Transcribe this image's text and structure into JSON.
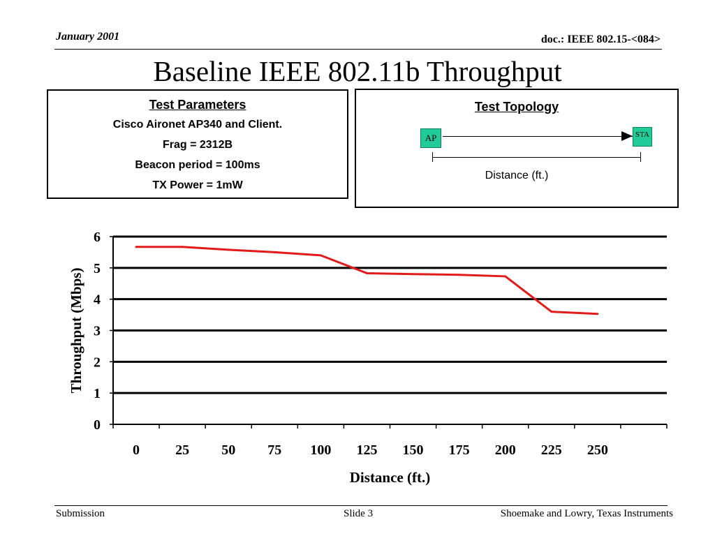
{
  "header": {
    "date": "January 2001",
    "doc": "doc.: IEEE 802.15-<084>"
  },
  "title": "Baseline IEEE 802.11b Throughput",
  "params": {
    "heading": "Test Parameters",
    "lines": [
      "Cisco Aironet AP340 and Client.",
      "Frag = 2312B",
      "Beacon period = 100ms",
      "TX Power = 1mW"
    ]
  },
  "topology": {
    "heading": "Test Topology",
    "ap": "AP",
    "sta": "STA",
    "distance_label": "Distance (ft.)"
  },
  "chart_data": {
    "type": "line",
    "categories": [
      "0",
      "25",
      "50",
      "75",
      "100",
      "125",
      "150",
      "175",
      "200",
      "225",
      "250"
    ],
    "series": [
      {
        "values": [
          5.67,
          5.67,
          5.58,
          5.5,
          5.4,
          4.83,
          4.8,
          4.78,
          4.73,
          3.6,
          3.53
        ],
        "color": "#e31a1a"
      }
    ],
    "xlabel": "Distance (ft.)",
    "ylabel": "Throughput (Mbps)",
    "ylim": [
      0,
      6
    ],
    "yticks": [
      0,
      1,
      2,
      3,
      4,
      5,
      6
    ],
    "grid": true,
    "legend": "none"
  },
  "footer": {
    "left": "Submission",
    "center": "Slide 3",
    "right": "Shoemake and Lowry, Texas Instruments"
  }
}
